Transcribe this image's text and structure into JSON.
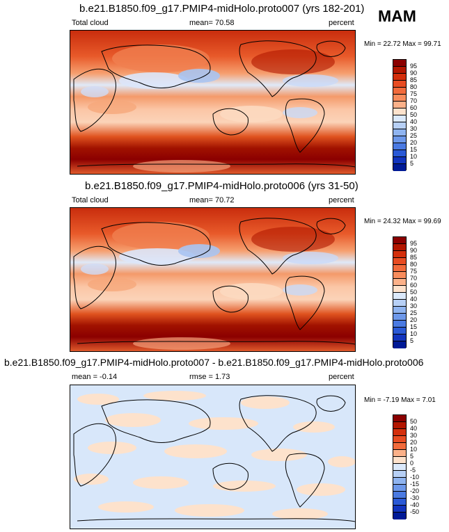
{
  "season": "MAM",
  "panels": [
    {
      "title": "b.e21.B1850.f09_g17.PMIP4-midHolo.proto007 (yrs 182-201)",
      "left_label": "Total cloud",
      "mid_label": "mean=  70.58",
      "units": "percent",
      "minmax": "Min =  22.72 Max =  99.71",
      "colorbar": {
        "labels": [
          "95",
          "90",
          "85",
          "80",
          "75",
          "70",
          "60",
          "50",
          "40",
          "30",
          "25",
          "20",
          "15",
          "10",
          "5"
        ],
        "colors": [
          "#8b0000",
          "#b31600",
          "#d42f0c",
          "#e84c22",
          "#f26b3c",
          "#f88c5c",
          "#fbb189",
          "#fde2cc",
          "#dbe9fb",
          "#b7d0f6",
          "#8fb4f0",
          "#6d98ea",
          "#4a7ae2",
          "#2a59d6",
          "#1234be",
          "#001a96"
        ]
      }
    },
    {
      "title": "b.e21.B1850.f09_g17.PMIP4-midHolo.proto006 (yrs 31-50)",
      "left_label": "Total cloud",
      "mid_label": "mean=  70.72",
      "units": "percent",
      "minmax": "Min =  24.32 Max =  99.69",
      "colorbar": {
        "labels": [
          "95",
          "90",
          "85",
          "80",
          "75",
          "70",
          "60",
          "50",
          "40",
          "30",
          "25",
          "20",
          "15",
          "10",
          "5"
        ],
        "colors": [
          "#8b0000",
          "#b31600",
          "#d42f0c",
          "#e84c22",
          "#f26b3c",
          "#f88c5c",
          "#fbb189",
          "#fde2cc",
          "#dbe9fb",
          "#b7d0f6",
          "#8fb4f0",
          "#6d98ea",
          "#4a7ae2",
          "#2a59d6",
          "#1234be",
          "#001a96"
        ]
      }
    },
    {
      "title": "b.e21.B1850.f09_g17.PMIP4-midHolo.proto007 - b.e21.B1850.f09_g17.PMIP4-midHolo.proto006",
      "left_label": "mean =  -0.14",
      "mid_label": "rmse =   1.73",
      "units": "percent",
      "minmax": "Min =  -7.19 Max =   7.01",
      "colorbar": {
        "labels": [
          "50",
          "40",
          "30",
          "20",
          "10",
          "5",
          "0",
          "-5",
          "-10",
          "-15",
          "-20",
          "-30",
          "-40",
          "-50"
        ],
        "colors": [
          "#8b0000",
          "#b31600",
          "#d42f0c",
          "#e84c22",
          "#f26b3c",
          "#fbb189",
          "#fde2cc",
          "#dbe9fb",
          "#b7d0f6",
          "#8fb4f0",
          "#6d98ea",
          "#4a7ae2",
          "#2a59d6",
          "#1234be",
          "#001a96"
        ]
      }
    }
  ]
}
